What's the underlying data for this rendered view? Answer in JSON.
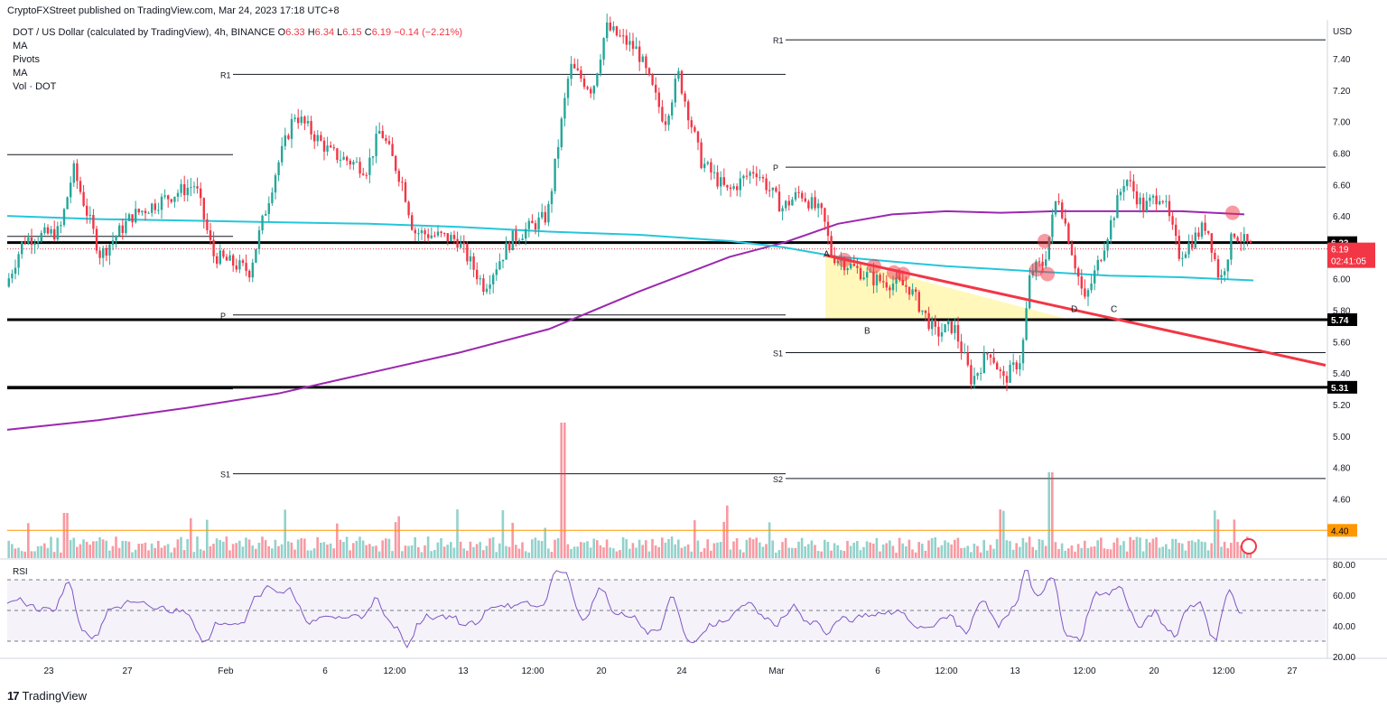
{
  "header": {
    "published": "CryptoFXStreet published on TradingView.com, Mar 24, 2023 17:18 UTC+8",
    "symbol": "DOT / US Dollar (calculated by TradingView), 4h, BINANCE",
    "ohlc": [
      {
        "label": "O",
        "value": "6.33"
      },
      {
        "label": "H",
        "value": "6.34"
      },
      {
        "label": "L",
        "value": "6.15"
      },
      {
        "label": "C",
        "value": "6.19"
      }
    ],
    "change": "−0.14 (−2.21%)",
    "indicators": [
      "MA",
      "Pivots",
      "MA",
      "Vol · DOT"
    ]
  },
  "footer": {
    "brand": "TradingView"
  },
  "colors": {
    "up": "#26a69a",
    "down": "#f23645",
    "ma_slow": "#9c27b0",
    "ma_fast": "#26c6da",
    "trendline": "#f23645",
    "triangle_fill": "#fff59d",
    "rsi": "#7e57c2",
    "volume_line": "#ff9800"
  },
  "chart_data": {
    "type": "candlestick",
    "timeframe": "4h",
    "currency": "USD",
    "price_ticks": [
      "7.40",
      "7.20",
      "7.00",
      "6.80",
      "6.60",
      "6.40",
      "6.00",
      "5.80",
      "5.60",
      "5.40",
      "5.20",
      "5.00",
      "4.80",
      "4.60"
    ],
    "ylim": [
      4.45,
      7.53
    ],
    "x_labels": [
      "23",
      "27",
      "Feb",
      "6",
      "12:00",
      "13",
      "12:00",
      "20",
      "24",
      "Mar",
      "6",
      "12:00",
      "13",
      "12:00",
      "20",
      "12:00",
      "27"
    ],
    "horizontal_levels": [
      {
        "label": "6.23",
        "price": 6.23,
        "style": "bold"
      },
      {
        "label": "5.74",
        "price": 5.74,
        "style": "bold"
      },
      {
        "label": "5.31",
        "price": 5.31,
        "style": "bold"
      }
    ],
    "current_price": {
      "label": "6.19",
      "countdown": "02:41:05"
    },
    "volume_level": {
      "label": "4.40"
    },
    "pivots": [
      {
        "label": "R1",
        "price": 7.3,
        "segment": 1
      },
      {
        "label": "P",
        "price": 5.77,
        "segment": 1
      },
      {
        "label": "S1",
        "price": 4.76,
        "segment": 1
      },
      {
        "label": "R1",
        "price": 7.52,
        "segment": 2
      },
      {
        "label": "P",
        "price": 6.71,
        "segment": 2
      },
      {
        "label": "S1",
        "price": 5.53,
        "segment": 2
      },
      {
        "label": "S2",
        "price": 4.73,
        "segment": 2
      }
    ],
    "pattern_labels": [
      "A",
      "B",
      "D",
      "C"
    ],
    "ma_slow_points": [
      [
        0,
        5.04
      ],
      [
        100,
        5.1
      ],
      [
        200,
        5.18
      ],
      [
        300,
        5.27
      ],
      [
        400,
        5.4
      ],
      [
        500,
        5.53
      ],
      [
        600,
        5.68
      ],
      [
        700,
        5.92
      ],
      [
        800,
        6.14
      ],
      [
        860,
        6.23
      ],
      [
        920,
        6.35
      ],
      [
        980,
        6.41
      ],
      [
        1040,
        6.43
      ],
      [
        1100,
        6.42
      ],
      [
        1160,
        6.43
      ],
      [
        1220,
        6.43
      ],
      [
        1300,
        6.43
      ],
      [
        1370,
        6.41
      ]
    ],
    "ma_fast_points": [
      [
        0,
        6.4
      ],
      [
        100,
        6.38
      ],
      [
        200,
        6.37
      ],
      [
        300,
        6.36
      ],
      [
        400,
        6.35
      ],
      [
        500,
        6.33
      ],
      [
        600,
        6.3
      ],
      [
        700,
        6.28
      ],
      [
        800,
        6.24
      ],
      [
        860,
        6.2
      ],
      [
        920,
        6.14
      ],
      [
        980,
        6.11
      ],
      [
        1040,
        6.08
      ],
      [
        1100,
        6.06
      ],
      [
        1160,
        6.04
      ],
      [
        1220,
        6.02
      ],
      [
        1300,
        6.01
      ],
      [
        1380,
        5.99
      ]
    ],
    "rsi": {
      "ticks": [
        "80.00",
        "60.00",
        "40.00",
        "20.00"
      ],
      "upper": 70,
      "lower": 30
    }
  }
}
